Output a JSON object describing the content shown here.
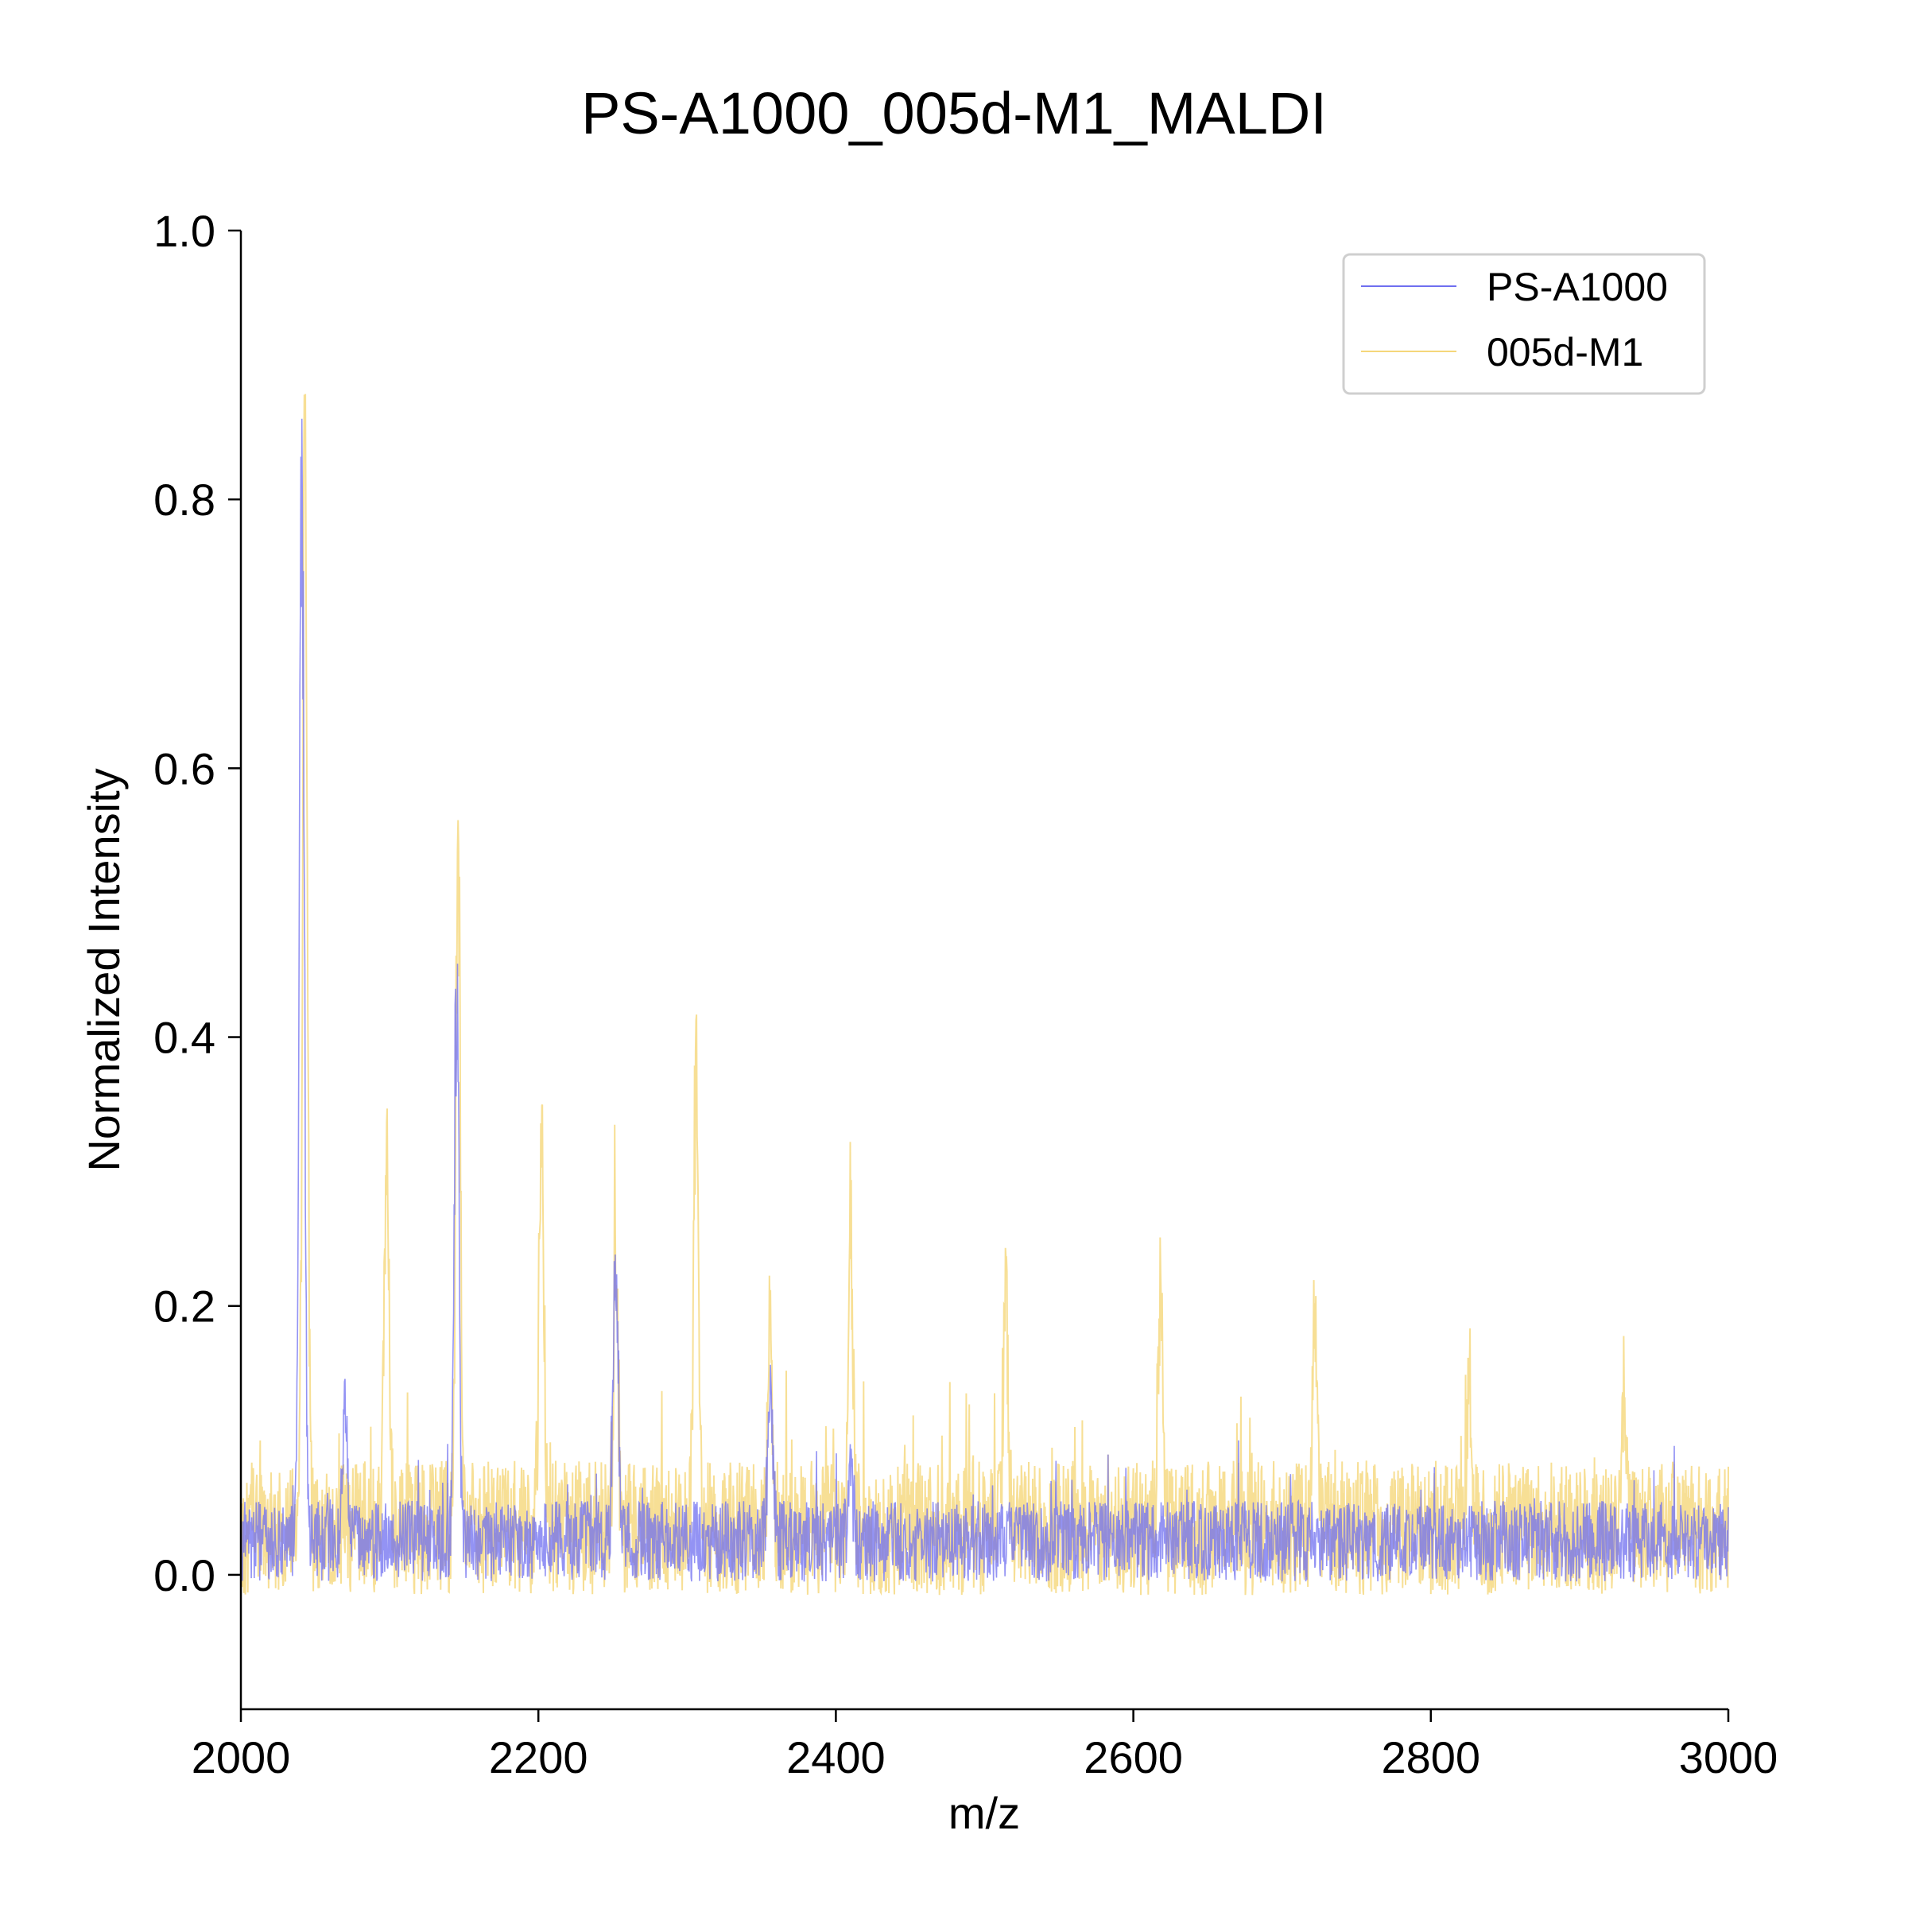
{
  "chart_data": {
    "type": "line",
    "title": "PS-A1000_005d-M1_MALDI",
    "xlabel": "m/z",
    "ylabel": "Normalized Intensity",
    "xlim": [
      2000,
      3000
    ],
    "ylim": [
      -0.1,
      1.0
    ],
    "xticks": [
      2000,
      2200,
      2400,
      2600,
      2800,
      3000
    ],
    "xtick_labels": [
      "2000",
      "2200",
      "2400",
      "2600",
      "2800",
      "3000"
    ],
    "yticks": [
      0.0,
      0.2,
      0.4,
      0.6,
      0.8,
      1.0
    ],
    "ytick_labels": [
      "0.0",
      "0.2",
      "0.4",
      "0.6",
      "0.8",
      "1.0"
    ],
    "grid": false,
    "legend_position": "top-right",
    "series": [
      {
        "name": "PS-A1000",
        "color": "#6f6ff0",
        "baseline": 0.025,
        "noise_amplitude": 0.03,
        "peaks": [
          {
            "x": 2041,
            "y": 0.95
          },
          {
            "x": 2070,
            "y": 0.135
          },
          {
            "x": 2145,
            "y": 0.5
          },
          {
            "x": 2252,
            "y": 0.28
          },
          {
            "x": 2356,
            "y": 0.165
          },
          {
            "x": 2410,
            "y": 0.09
          }
        ],
        "dips": [
          {
            "x": 2041,
            "y": -0.07
          }
        ]
      },
      {
        "name": "005d-M1",
        "color": "#f5d77a",
        "baseline": 0.035,
        "noise_amplitude": 0.05,
        "peaks": [
          {
            "x": 2043,
            "y": 1.0
          },
          {
            "x": 2098,
            "y": 0.36
          },
          {
            "x": 2146,
            "y": 0.58
          },
          {
            "x": 2202,
            "y": 0.37
          },
          {
            "x": 2252,
            "y": 0.28
          },
          {
            "x": 2306,
            "y": 0.43
          },
          {
            "x": 2356,
            "y": 0.19
          },
          {
            "x": 2410,
            "y": 0.3
          },
          {
            "x": 2514,
            "y": 0.26
          },
          {
            "x": 2618,
            "y": 0.24
          },
          {
            "x": 2722,
            "y": 0.21
          },
          {
            "x": 2826,
            "y": 0.15
          },
          {
            "x": 2930,
            "y": 0.16
          }
        ],
        "dips": [
          {
            "x": 2041,
            "y": -0.07
          }
        ]
      }
    ]
  }
}
